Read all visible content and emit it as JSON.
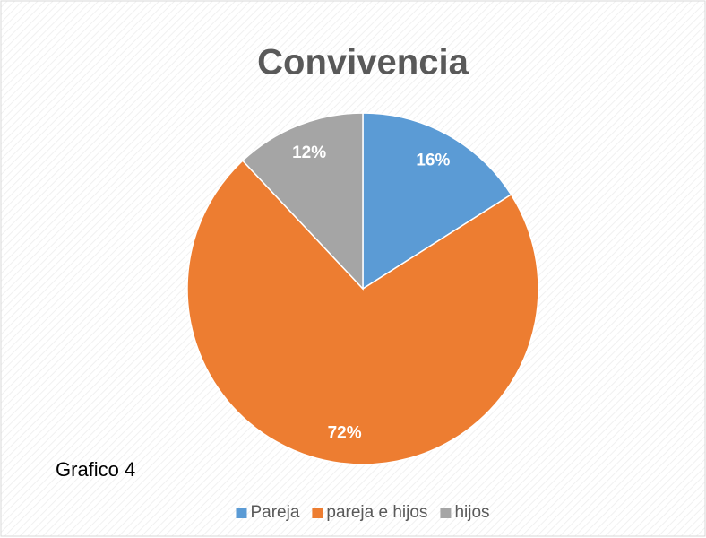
{
  "chart_data": {
    "type": "pie",
    "title": "Convivencia",
    "categories": [
      "Pareja",
      "pareja e hijos",
      "hijos"
    ],
    "values": [
      16,
      72,
      12
    ],
    "value_labels": [
      "16%",
      "72%",
      "12%"
    ],
    "colors": [
      "#5b9bd5",
      "#ed7d31",
      "#a5a5a5"
    ],
    "annotation": "Grafico 4",
    "legend": "bottom"
  }
}
